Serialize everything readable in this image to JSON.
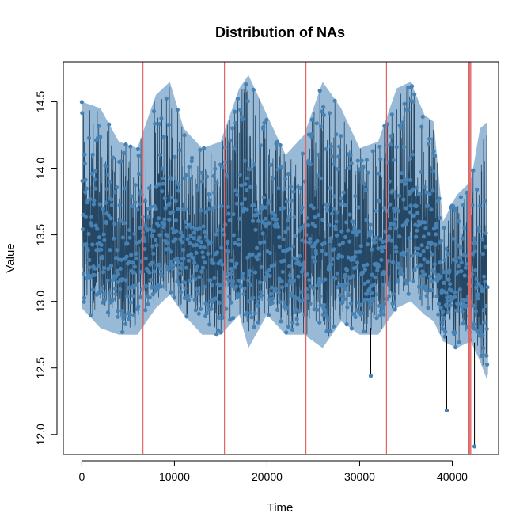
{
  "chart_data": {
    "type": "line",
    "title": "Distribution of NAs",
    "xlabel": "Time",
    "ylabel": "Value",
    "xlim": [
      -2000,
      45000
    ],
    "ylim": [
      11.85,
      14.8
    ],
    "xticks": [
      0,
      10000,
      20000,
      30000,
      40000
    ],
    "yticks": [
      12.0,
      12.5,
      13.0,
      13.5,
      14.0,
      14.5
    ],
    "xtick_labels": [
      "0",
      "10000",
      "20000",
      "30000",
      "40000"
    ],
    "ytick_labels": [
      "12.0",
      "12.5",
      "13.0",
      "13.5",
      "14.0",
      "14.5"
    ],
    "series": [
      {
        "color": "#4682B4",
        "line_color": "#000000",
        "n_points": 43800,
        "envelope": [
          {
            "x": 0,
            "low": 12.95,
            "high": 14.5
          },
          {
            "x": 2000,
            "low": 12.8,
            "high": 14.45
          },
          {
            "x": 4000,
            "low": 12.75,
            "high": 14.2
          },
          {
            "x": 6000,
            "low": 12.75,
            "high": 14.15
          },
          {
            "x": 8000,
            "low": 12.95,
            "high": 14.55
          },
          {
            "x": 9500,
            "low": 13.05,
            "high": 14.65
          },
          {
            "x": 11000,
            "low": 12.9,
            "high": 14.3
          },
          {
            "x": 13000,
            "low": 12.75,
            "high": 14.15
          },
          {
            "x": 15000,
            "low": 12.75,
            "high": 14.2
          },
          {
            "x": 17000,
            "low": 12.9,
            "high": 14.6
          },
          {
            "x": 18000,
            "low": 12.65,
            "high": 14.7
          },
          {
            "x": 20000,
            "low": 12.9,
            "high": 14.4
          },
          {
            "x": 22000,
            "low": 12.75,
            "high": 14.1
          },
          {
            "x": 24000,
            "low": 12.75,
            "high": 14.25
          },
          {
            "x": 26000,
            "low": 12.65,
            "high": 14.65
          },
          {
            "x": 28000,
            "low": 12.85,
            "high": 14.45
          },
          {
            "x": 30000,
            "low": 12.75,
            "high": 14.15
          },
          {
            "x": 32000,
            "low": 12.75,
            "high": 14.2
          },
          {
            "x": 34000,
            "low": 12.95,
            "high": 14.6
          },
          {
            "x": 35500,
            "low": 13.0,
            "high": 14.65
          },
          {
            "x": 37000,
            "low": 12.9,
            "high": 14.4
          },
          {
            "x": 38000,
            "low": 12.85,
            "high": 14.35
          },
          {
            "x": 39000,
            "low": 12.7,
            "high": 13.6
          },
          {
            "x": 40500,
            "low": 12.65,
            "high": 13.8
          },
          {
            "x": 42000,
            "low": 12.7,
            "high": 13.9
          },
          {
            "x": 43000,
            "low": 12.55,
            "high": 14.3
          },
          {
            "x": 43800,
            "low": 12.4,
            "high": 14.35
          }
        ],
        "spikes": [
          {
            "x": 31200,
            "value": 12.44
          },
          {
            "x": 39400,
            "value": 12.18
          },
          {
            "x": 42400,
            "value": 11.91
          }
        ]
      }
    ],
    "na_lines": {
      "color": "#E06666",
      "x": [
        6600,
        15400,
        24200,
        32900,
        41800,
        41900,
        42000
      ]
    }
  }
}
